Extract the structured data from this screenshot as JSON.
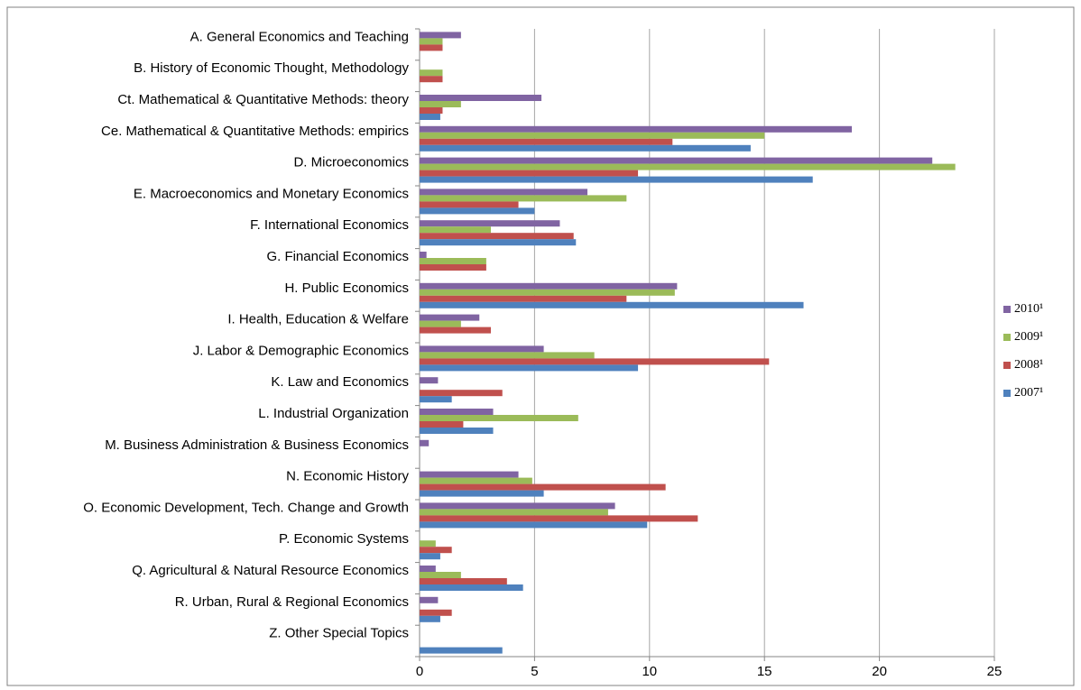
{
  "chart_data": {
    "type": "bar",
    "orientation": "horizontal",
    "categories": [
      "A. General Economics and Teaching",
      "B. History of Economic Thought, Methodology",
      "Ct. Mathematical & Quantitative Methods: theory",
      "Ce. Mathematical & Quantitative Methods: empirics",
      "D. Microeconomics",
      "E. Macroeconomics and Monetary Economics",
      "F. International Economics",
      "G. Financial Economics",
      "H. Public Economics",
      "I. Health, Education & Welfare",
      "J. Labor & Demographic Economics",
      "K. Law and Economics",
      "L. Industrial Organization",
      "M. Business Administration & Business Economics",
      "N. Economic History",
      "O. Economic Development, Tech. Change and Growth",
      "P. Economic Systems",
      "Q. Agricultural & Natural Resource Economics",
      "R. Urban, Rural & Regional Economics",
      "Z. Other Special Topics"
    ],
    "series": [
      {
        "name": "2010¹",
        "color": "#8064a2",
        "values": [
          1.8,
          0,
          5.3,
          18.8,
          22.3,
          7.3,
          6.1,
          0.3,
          11.2,
          2.6,
          5.4,
          0.8,
          3.2,
          0.4,
          4.3,
          8.5,
          0,
          0.7,
          0.8,
          0
        ]
      },
      {
        "name": "2009¹",
        "color": "#9bbb59",
        "values": [
          1.0,
          1.0,
          1.8,
          15.0,
          23.3,
          9.0,
          3.1,
          2.9,
          11.1,
          1.8,
          7.6,
          0,
          6.9,
          0,
          4.9,
          8.2,
          0.7,
          1.8,
          0,
          0
        ]
      },
      {
        "name": "2008¹",
        "color": "#c0504d",
        "values": [
          1.0,
          1.0,
          1.0,
          11.0,
          9.5,
          4.3,
          6.7,
          2.9,
          9.0,
          3.1,
          15.2,
          3.6,
          1.9,
          0,
          10.7,
          12.1,
          1.4,
          3.8,
          1.4,
          0
        ]
      },
      {
        "name": "2007¹",
        "color": "#4f81bd",
        "values": [
          0,
          0,
          0.9,
          14.4,
          17.1,
          5.0,
          6.8,
          0,
          16.7,
          0,
          9.5,
          1.4,
          3.2,
          0,
          5.4,
          9.9,
          0.9,
          4.5,
          0.9,
          3.6
        ]
      }
    ],
    "xlim": [
      0,
      25
    ],
    "xticks": [
      0,
      5,
      10,
      15,
      20,
      25
    ],
    "grid": true,
    "legend": "right"
  }
}
